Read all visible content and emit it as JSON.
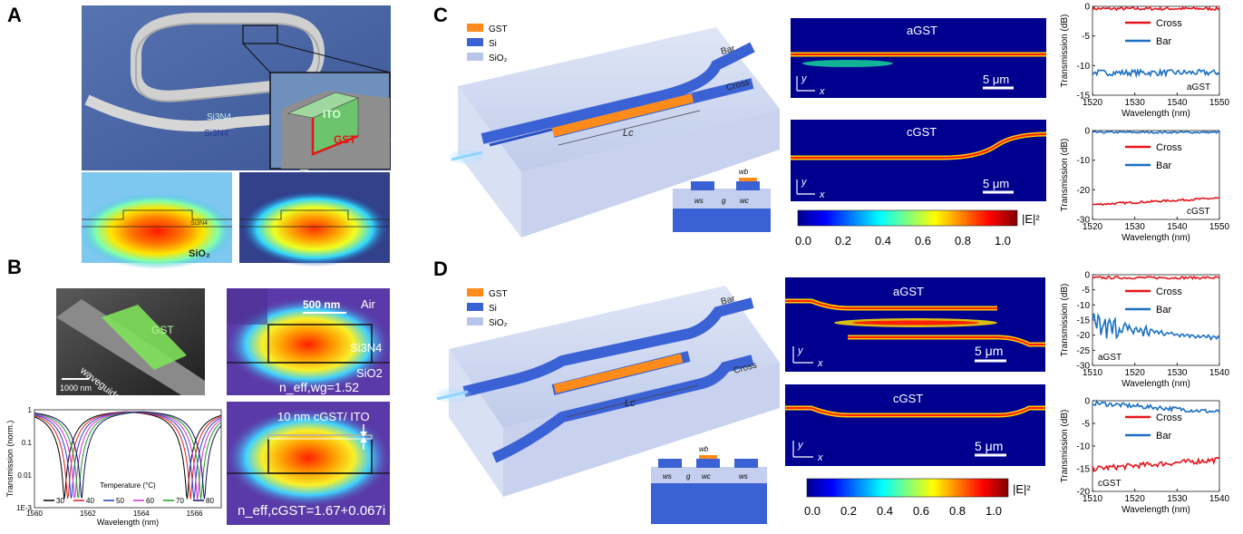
{
  "panels": {
    "A": {
      "letter": "A",
      "label_si3n4_ring": "Si3N4",
      "label_si3n4_sub": "Si3N4",
      "label_ito": "ITO",
      "label_gst": "GST",
      "label_si3n4_small": "Si3N4",
      "label_sio2": "SiO₂"
    },
    "B": {
      "letter": "B",
      "sem_gst": "GST",
      "sem_waveguide": "waveguide",
      "sem_scale": "1000 nm",
      "mode_scale": "500 nm",
      "air": "Air",
      "si3n4": "Si3N4",
      "sio2": "SiO2",
      "neff_wg": "n_eff,wg=1.52",
      "cgst_ito": "10 nm cGST/ ITO",
      "neff_cgst": "n_eff,cGST=1.67+0.067i"
    },
    "C": {
      "letter": "C",
      "legend": [
        "GST",
        "Si",
        "SiO₂"
      ],
      "bar": "Bar",
      "cross": "Cross",
      "lc": "Lc",
      "wb": "wb",
      "ws": "ws",
      "g": "g",
      "wc": "wc",
      "field_a": "aGST",
      "field_c": "cGST",
      "scale": "5 μm",
      "y": "y",
      "x": "x",
      "colorbar_ticks": [
        "0.0",
        "0.2",
        "0.4",
        "0.6",
        "0.8",
        "1.0"
      ],
      "colorbar_label": "|E|²"
    },
    "D": {
      "letter": "D",
      "legend": [
        "GST",
        "Si",
        "SiO₂"
      ],
      "bar": "Bar",
      "cross": "Cross",
      "lc": "Lc",
      "wb": "wb",
      "ws": "ws",
      "g": "g",
      "wc": "wc",
      "field_a": "aGST",
      "field_c": "cGST",
      "scale": "5 μm",
      "y": "y",
      "x": "x",
      "colorbar_ticks": [
        "0.0",
        "0.2",
        "0.4",
        "0.6",
        "0.8",
        "1.0"
      ],
      "colorbar_label": "|E|²"
    }
  },
  "chart_data": [
    {
      "id": "B-ring-transmission",
      "type": "line",
      "xlabel": "Wavelength (nm)",
      "ylabel": "Transmission (norm.)",
      "xlim": [
        1560,
        1567
      ],
      "ylim_log": [
        0.001,
        1
      ],
      "xticks": [
        "1560",
        "1562",
        "1564",
        "1566"
      ],
      "yticks": [
        "1",
        "0.1",
        "0.01",
        "1E-3"
      ],
      "legend_title": "Temperature (°C)",
      "series": [
        {
          "name": "30",
          "color": "#000000",
          "dips": [
            1561.12,
            1565.72
          ]
        },
        {
          "name": "40",
          "color": "#e41a1c",
          "dips": [
            1561.25,
            1565.85
          ]
        },
        {
          "name": "50",
          "color": "#1f3fd0",
          "dips": [
            1561.38,
            1565.98
          ]
        },
        {
          "name": "60",
          "color": "#d62ad6",
          "dips": [
            1561.51,
            1566.11
          ]
        },
        {
          "name": "70",
          "color": "#1a9e1a",
          "dips": [
            1561.64,
            1566.24
          ]
        },
        {
          "name": "80",
          "color": "#111166",
          "dips": [
            1561.77,
            1566.37
          ]
        }
      ]
    },
    {
      "id": "C-aGST",
      "type": "line",
      "xlabel": "Wavelength (nm)",
      "ylabel": "Transmission (dB)",
      "xlim": [
        1520,
        1550
      ],
      "ylim": [
        -15,
        0
      ],
      "xticks": [
        "1520",
        "1530",
        "1540",
        "1550"
      ],
      "yticks": [
        "0",
        "-5",
        "-10",
        "-15"
      ],
      "annotation": "aGST",
      "series": [
        {
          "name": "Cross",
          "color": "#e8141c",
          "base": -0.4,
          "noise": 0.25
        },
        {
          "name": "Bar",
          "color": "#1a6fc4",
          "base": -11.2,
          "noise": 0.5
        }
      ]
    },
    {
      "id": "C-cGST",
      "type": "line",
      "xlabel": "Wavelength (nm)",
      "ylabel": "Transmission (dB)",
      "xlim": [
        1520,
        1550
      ],
      "ylim": [
        -30,
        0
      ],
      "xticks": [
        "1520",
        "1530",
        "1540",
        "1550"
      ],
      "yticks": [
        "0",
        "-10",
        "-20",
        "-30"
      ],
      "annotation": "cGST",
      "series": [
        {
          "name": "Cross",
          "color": "#e8141c",
          "start": -25,
          "end": -22.8,
          "noise": 0.35
        },
        {
          "name": "Bar",
          "color": "#1a6fc4",
          "base": -0.6,
          "noise": 0.3
        }
      ]
    },
    {
      "id": "D-aGST",
      "type": "line",
      "xlabel": "Wavelength (nm)",
      "ylabel": "Transmission (dB)",
      "xlim": [
        1510,
        1540
      ],
      "ylim": [
        -30,
        0
      ],
      "xticks": [
        "1510",
        "1520",
        "1530",
        "1540"
      ],
      "yticks": [
        "0",
        "-5",
        "-10",
        "-15",
        "-20",
        "-25",
        "-30"
      ],
      "annotation": "aGST",
      "series": [
        {
          "name": "Cross",
          "color": "#e8141c",
          "base": -1,
          "noise": 0.4
        },
        {
          "name": "Bar",
          "color": "#1a6fc4",
          "start": -17,
          "end": -21,
          "noise": 3
        }
      ]
    },
    {
      "id": "D-cGST",
      "type": "line",
      "xlabel": "Wavelength (nm)",
      "ylabel": "Transmission (dB)",
      "xlim": [
        1510,
        1540
      ],
      "ylim": [
        -20,
        0
      ],
      "xticks": [
        "1510",
        "1520",
        "1530",
        "1540"
      ],
      "yticks": [
        "0",
        "-5",
        "-10",
        "-15",
        "-20"
      ],
      "annotation": "cGST",
      "series": [
        {
          "name": "Cross",
          "color": "#e8141c",
          "start": -15,
          "end": -13,
          "noise": 0.6
        },
        {
          "name": "Bar",
          "color": "#1a6fc4",
          "start": -0.5,
          "end": -2.5,
          "noise": 0.5
        }
      ]
    }
  ]
}
